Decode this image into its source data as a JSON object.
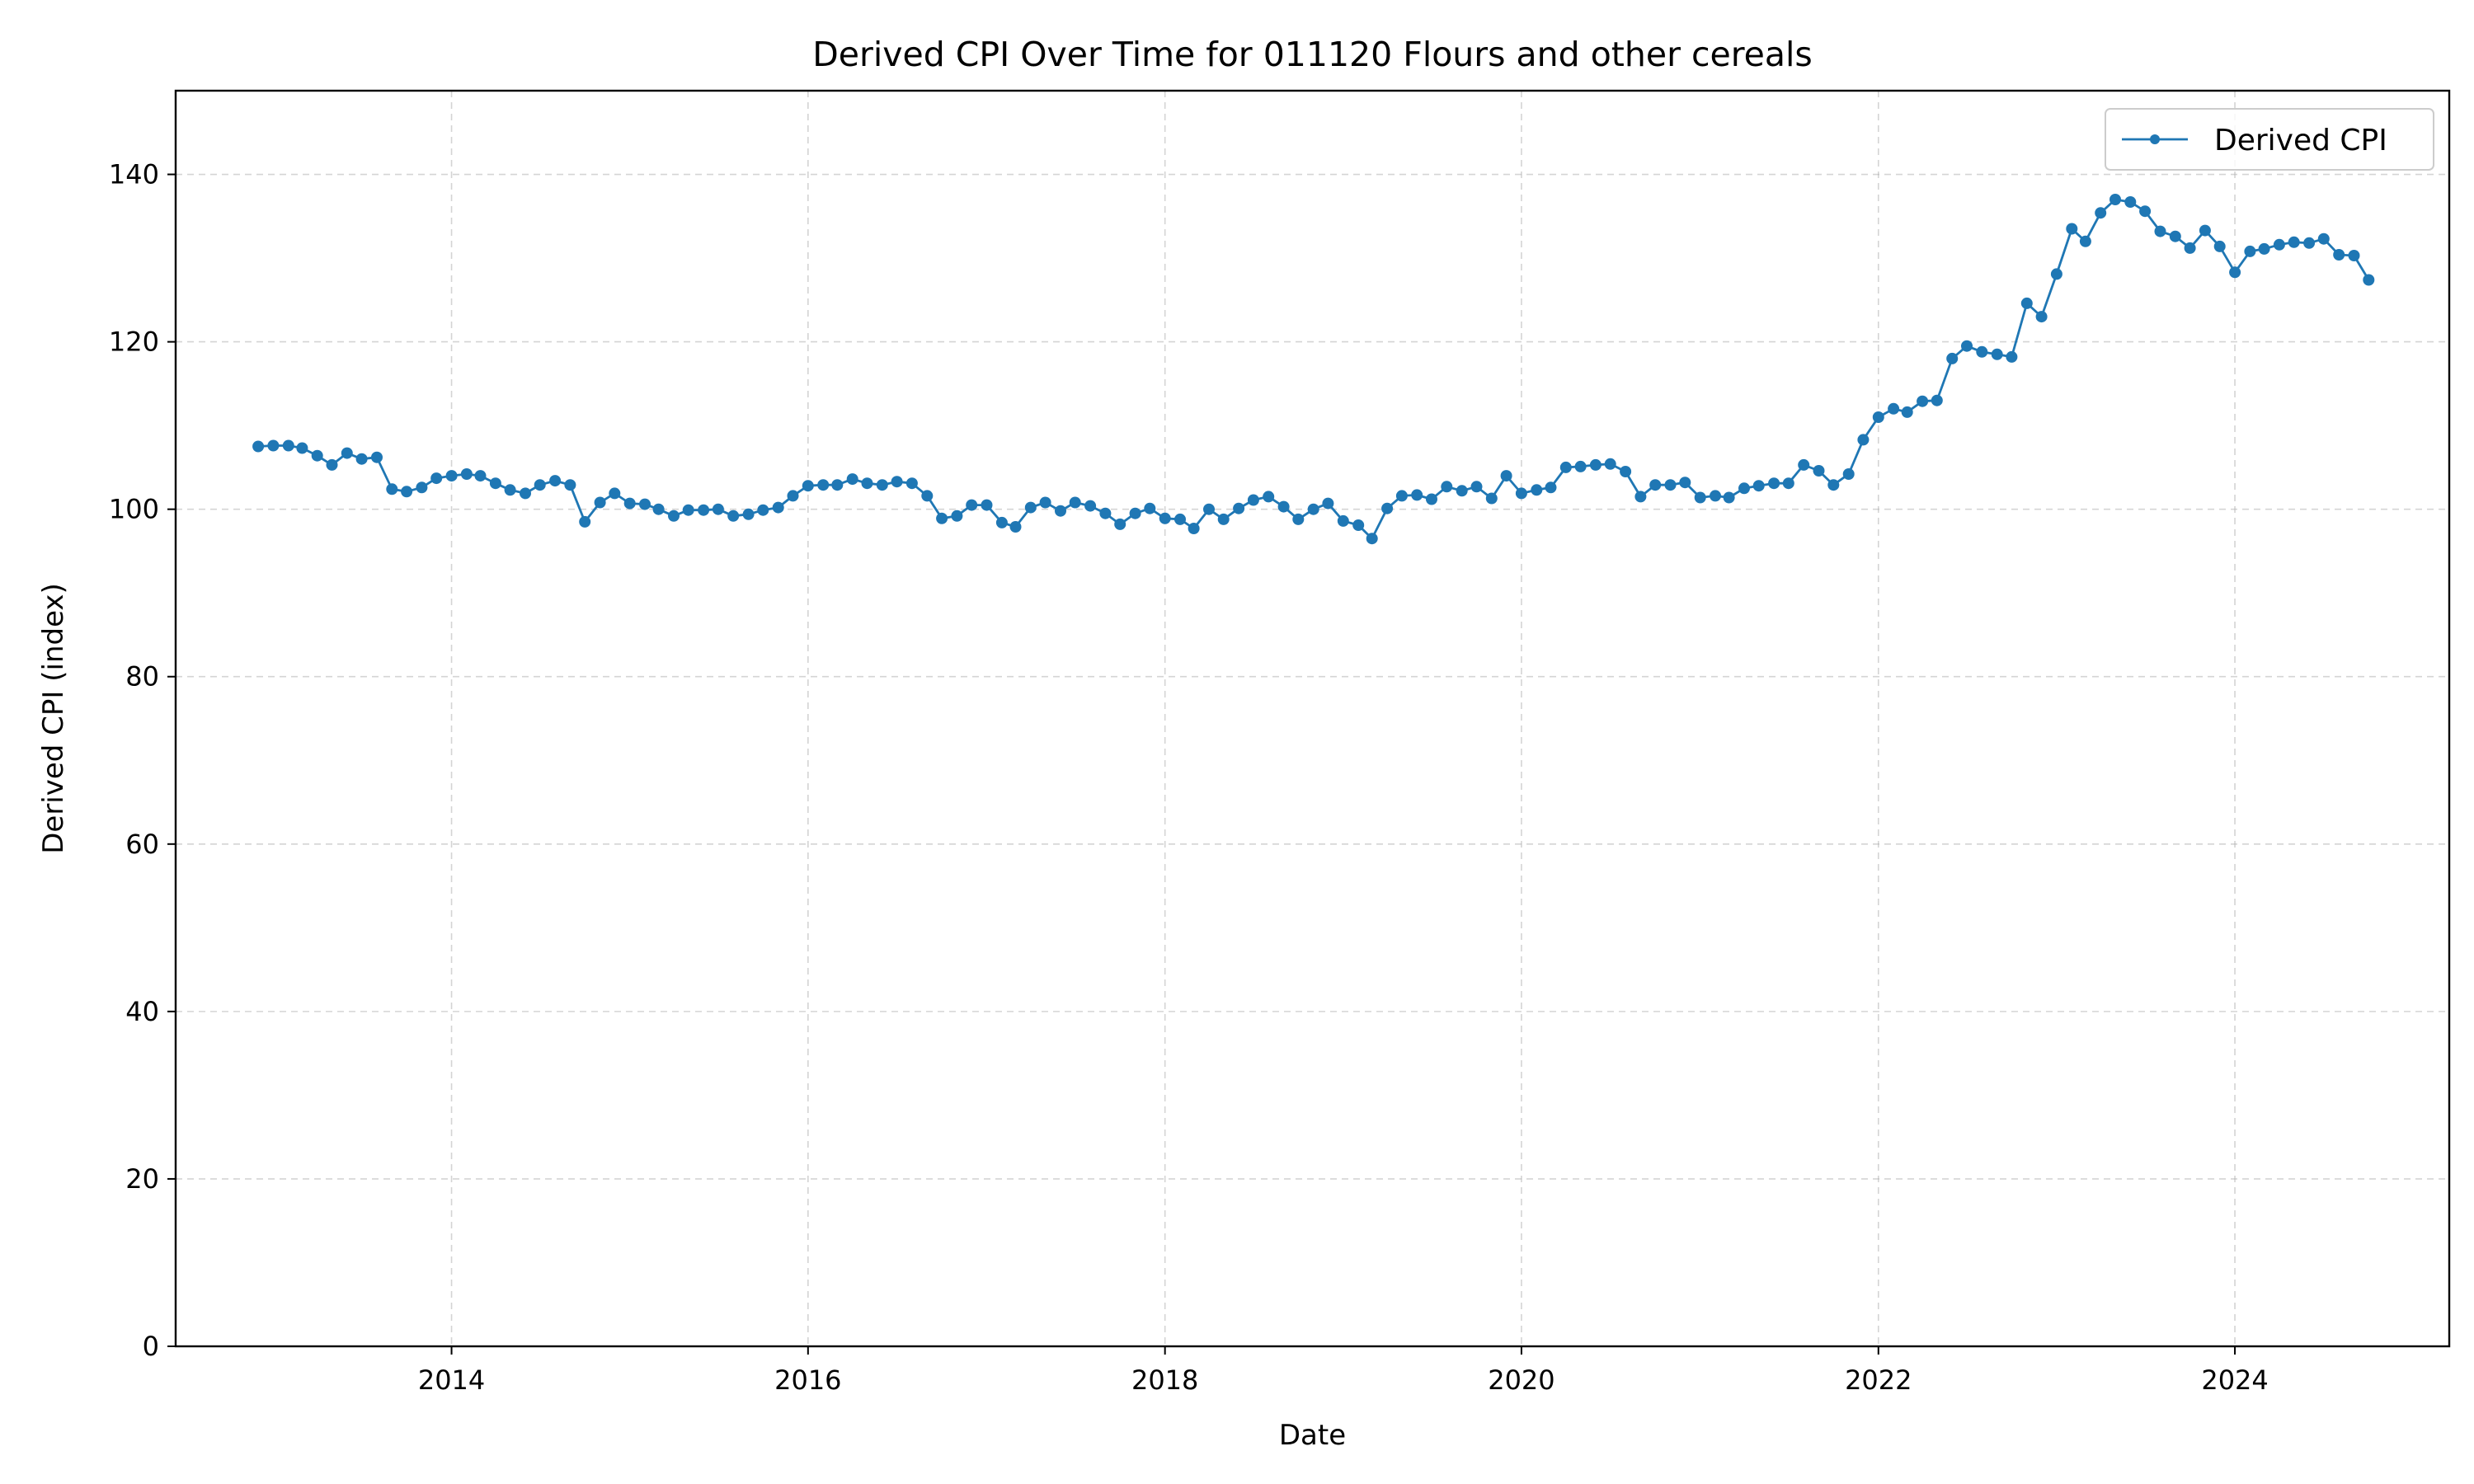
{
  "chart_data": {
    "type": "line",
    "title": "Derived CPI Over Time for 011120 Flours and other cereals",
    "xlabel": "Date",
    "ylabel": "Derived CPI (index)",
    "ylim": [
      0,
      150
    ],
    "xlim": [
      "2012-06-15",
      "2025-03-15"
    ],
    "y_ticks": [
      0,
      20,
      40,
      60,
      80,
      100,
      120,
      140
    ],
    "x_ticks": [
      "2014",
      "2016",
      "2018",
      "2020",
      "2022",
      "2024"
    ],
    "grid": true,
    "legend_position": "upper right",
    "series": [
      {
        "name": "Derived CPI",
        "color": "#1f77b4",
        "marker": "circle",
        "x": [
          "2012-12",
          "2013-01",
          "2013-02",
          "2013-03",
          "2013-04",
          "2013-05",
          "2013-06",
          "2013-07",
          "2013-08",
          "2013-09",
          "2013-10",
          "2013-11",
          "2013-12",
          "2014-01",
          "2014-02",
          "2014-03",
          "2014-04",
          "2014-05",
          "2014-06",
          "2014-07",
          "2014-08",
          "2014-09",
          "2014-10",
          "2014-11",
          "2014-12",
          "2015-01",
          "2015-02",
          "2015-03",
          "2015-04",
          "2015-05",
          "2015-06",
          "2015-07",
          "2015-08",
          "2015-09",
          "2015-10",
          "2015-11",
          "2015-12",
          "2016-01",
          "2016-02",
          "2016-03",
          "2016-04",
          "2016-05",
          "2016-06",
          "2016-07",
          "2016-08",
          "2016-09",
          "2016-10",
          "2016-11",
          "2016-12",
          "2017-01",
          "2017-02",
          "2017-03",
          "2017-04",
          "2017-05",
          "2017-06",
          "2017-07",
          "2017-08",
          "2017-09",
          "2017-10",
          "2017-11",
          "2017-12",
          "2018-01",
          "2018-02",
          "2018-03",
          "2018-04",
          "2018-05",
          "2018-06",
          "2018-07",
          "2018-08",
          "2018-09",
          "2018-10",
          "2018-11",
          "2018-12",
          "2019-01",
          "2019-02",
          "2019-03",
          "2019-04",
          "2019-05",
          "2019-06",
          "2019-07",
          "2019-08",
          "2019-09",
          "2019-10",
          "2019-11",
          "2019-12",
          "2020-01",
          "2020-02",
          "2020-03",
          "2020-04",
          "2020-05",
          "2020-06",
          "2020-07",
          "2020-08",
          "2020-09",
          "2020-10",
          "2020-11",
          "2020-12",
          "2021-01",
          "2021-02",
          "2021-03",
          "2021-04",
          "2021-05",
          "2021-06",
          "2021-07",
          "2021-08",
          "2021-09",
          "2021-10",
          "2021-11",
          "2021-12",
          "2022-01",
          "2022-02",
          "2022-03",
          "2022-04",
          "2022-05",
          "2022-06",
          "2022-07",
          "2022-08",
          "2022-09",
          "2022-10",
          "2022-11",
          "2022-12",
          "2023-01",
          "2023-02",
          "2023-03",
          "2023-04",
          "2023-05",
          "2023-06",
          "2023-07",
          "2023-08",
          "2023-09",
          "2023-10",
          "2023-11",
          "2023-12",
          "2024-01",
          "2024-02",
          "2024-03",
          "2024-04",
          "2024-05",
          "2024-06",
          "2024-07",
          "2024-08",
          "2024-09",
          "2024-10"
        ],
        "y": [
          107.5,
          107.6,
          107.6,
          107.3,
          106.4,
          105.3,
          106.7,
          106.0,
          106.2,
          102.4,
          102.1,
          102.6,
          103.7,
          104.0,
          104.2,
          104.0,
          103.1,
          102.3,
          101.9,
          102.9,
          103.4,
          102.9,
          98.5,
          100.8,
          101.9,
          100.7,
          100.6,
          100.0,
          99.2,
          99.9,
          99.9,
          100.0,
          99.2,
          99.4,
          99.9,
          100.2,
          101.6,
          102.8,
          102.9,
          102.9,
          103.6,
          103.1,
          102.9,
          103.3,
          103.1,
          101.6,
          98.9,
          99.2,
          100.5,
          100.5,
          98.4,
          97.9,
          100.2,
          100.8,
          99.8,
          100.8,
          100.4,
          99.5,
          98.2,
          99.5,
          100.1,
          98.9,
          98.8,
          97.7,
          100.0,
          98.8,
          100.1,
          101.1,
          101.5,
          100.3,
          98.8,
          100.0,
          100.7,
          98.6,
          98.1,
          96.5,
          100.1,
          101.6,
          101.7,
          101.2,
          102.7,
          102.2,
          102.7,
          101.3,
          104.0,
          101.9,
          102.3,
          102.6,
          105.0,
          105.1,
          105.3,
          105.4,
          104.5,
          101.5,
          102.9,
          102.9,
          103.2,
          101.4,
          101.6,
          101.4,
          102.5,
          102.8,
          103.1,
          103.1,
          105.3,
          104.6,
          102.9,
          104.2,
          108.3,
          111.0,
          112.0,
          111.6,
          112.9,
          113.0,
          118.0,
          119.5,
          118.8,
          118.5,
          118.2,
          124.6,
          123.0,
          128.1,
          133.5,
          132.0,
          135.4,
          137.0,
          136.7,
          135.6,
          133.2,
          132.6,
          131.2,
          133.3,
          131.4,
          128.3,
          130.8,
          131.1,
          131.6,
          131.9,
          131.8,
          132.3,
          130.4,
          130.3,
          127.4
        ]
      }
    ]
  }
}
